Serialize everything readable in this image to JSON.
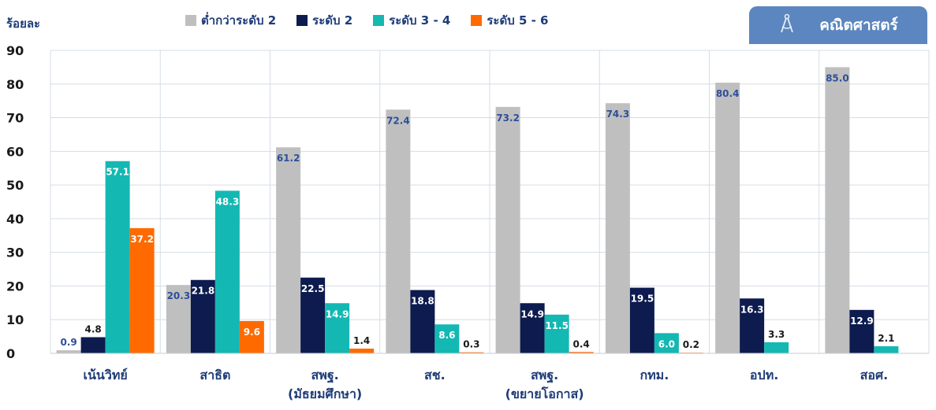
{
  "colors": {
    "below_level_2": "#bfbfbf",
    "level_2": "#0d1b4f",
    "level_3_4": "#14b8b3",
    "level_5_6": "#ff6a00",
    "axis_text": "#1e3c78",
    "subject_tab": "#5b86bf"
  },
  "subject_tab": {
    "icon": "compass-icon",
    "label": "คณิตศาสตร์"
  },
  "chart_data": {
    "type": "bar",
    "ylabel": "ร้อยละ",
    "ylim": [
      0,
      90
    ],
    "yticks": [
      0,
      10,
      20,
      30,
      40,
      50,
      60,
      70,
      80,
      90
    ],
    "grid": true,
    "legend_position": "top",
    "categories": [
      [
        "เน้นวิทย์"
      ],
      [
        "สาธิต"
      ],
      [
        "สพฐ.",
        "(มัธยมศึกษา)"
      ],
      [
        "สช."
      ],
      [
        "สพฐ.",
        "(ขยายโอกาส)"
      ],
      [
        "กทม."
      ],
      [
        "อปท."
      ],
      [
        "สอศ."
      ]
    ],
    "series": [
      {
        "name": "ต่ำกว่าระดับ 2",
        "color": "#bfbfbf",
        "values": [
          0.9,
          20.3,
          61.2,
          72.4,
          73.2,
          74.3,
          80.4,
          85.0
        ]
      },
      {
        "name": "ระดับ 2",
        "color": "#0d1b4f",
        "values": [
          4.8,
          21.8,
          22.5,
          18.8,
          14.9,
          19.5,
          16.3,
          12.9
        ]
      },
      {
        "name": "ระดับ 3 - 4",
        "color": "#14b8b3",
        "values": [
          57.1,
          48.3,
          14.9,
          8.6,
          11.5,
          6.0,
          3.3,
          2.1
        ]
      },
      {
        "name": "ระดับ 5 - 6",
        "color": "#ff6a00",
        "values": [
          37.2,
          9.6,
          1.4,
          0.3,
          0.4,
          0.2,
          null,
          null
        ]
      }
    ]
  }
}
